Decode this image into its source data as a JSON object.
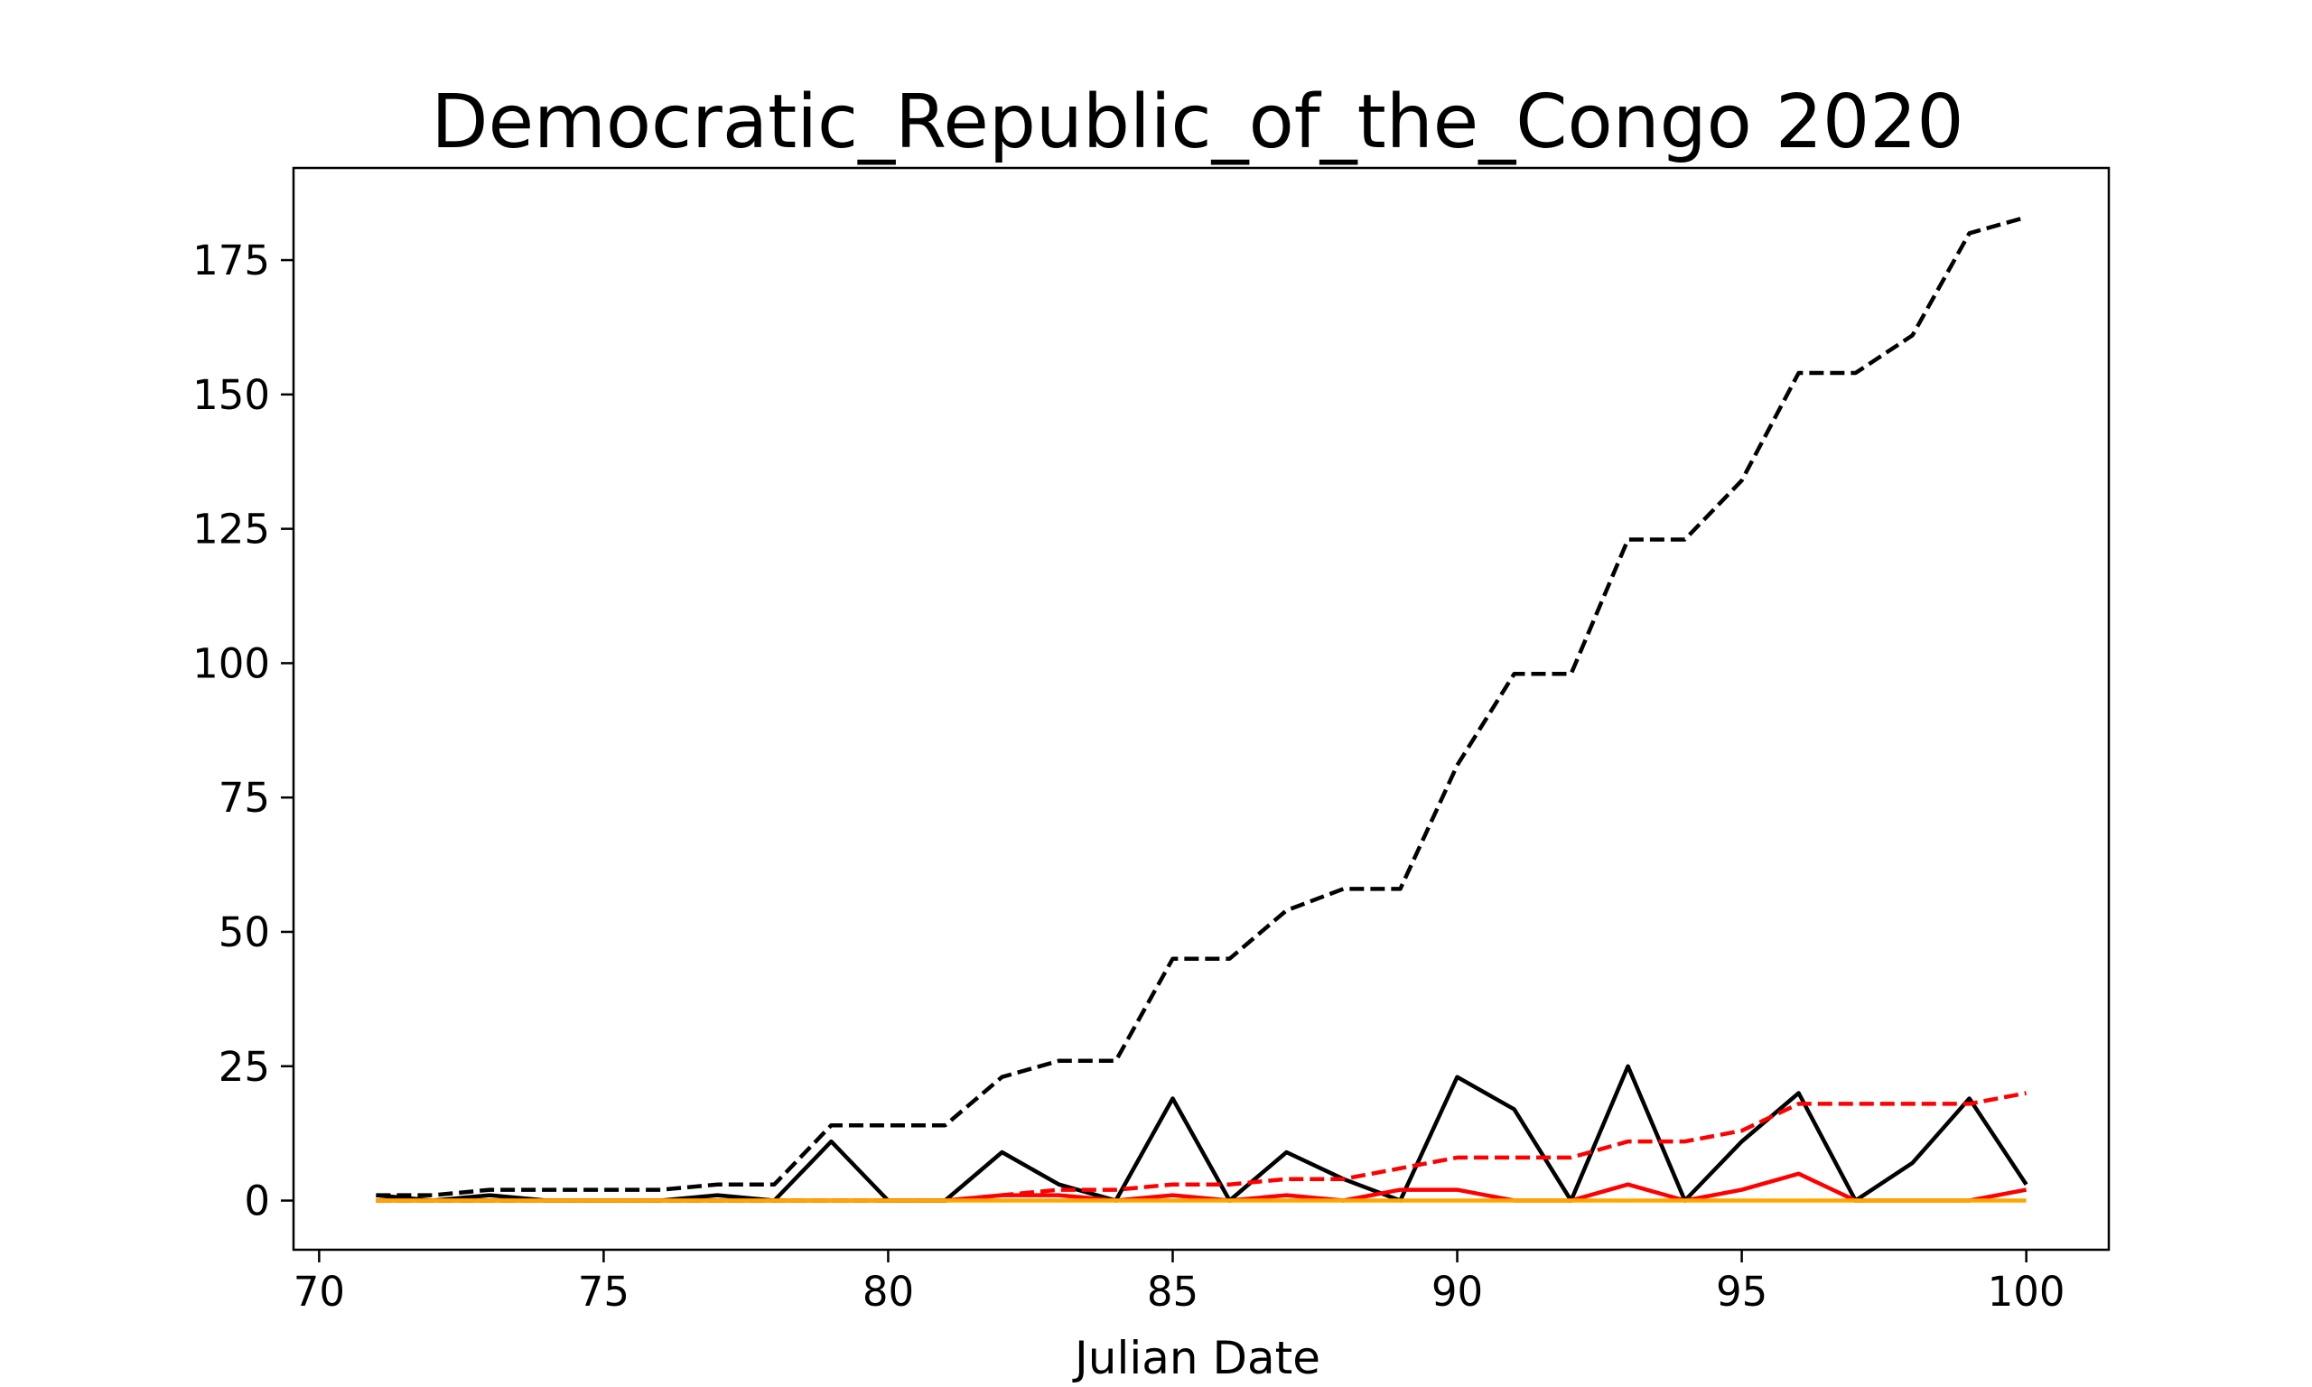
{
  "chart_data": {
    "type": "line",
    "title": "Democratic_Republic_of_the_Congo 2020",
    "xlabel": "Julian Date",
    "ylabel": "",
    "xlim": [
      69.55,
      101.45
    ],
    "ylim": [
      -9.15,
      192.15
    ],
    "xticks": [
      70,
      75,
      80,
      85,
      90,
      95,
      100
    ],
    "yticks": [
      0,
      25,
      50,
      75,
      100,
      125,
      150,
      175
    ],
    "grid": false,
    "legend": "none",
    "x": [
      71,
      72,
      73,
      74,
      75,
      76,
      77,
      78,
      79,
      80,
      81,
      82,
      83,
      84,
      85,
      86,
      87,
      88,
      89,
      90,
      91,
      92,
      93,
      94,
      95,
      96,
      97,
      98,
      99,
      100
    ],
    "series": [
      {
        "color": "#000000",
        "style": "dashed",
        "values": [
          1,
          1,
          2,
          2,
          2,
          2,
          3,
          3,
          14,
          14,
          14,
          23,
          26,
          26,
          45,
          45,
          54,
          58,
          58,
          81,
          98,
          98,
          123,
          123,
          134,
          154,
          154,
          161,
          180,
          183
        ]
      },
      {
        "color": "#000000",
        "style": "solid",
        "values": [
          1,
          0,
          1,
          0,
          0,
          0,
          1,
          0,
          11,
          0,
          0,
          9,
          3,
          0,
          19,
          0,
          9,
          4,
          0,
          23,
          17,
          0,
          25,
          0,
          11,
          20,
          0,
          7,
          19,
          3
        ]
      },
      {
        "color": "#ff0000",
        "style": "dashed",
        "values": [
          0,
          0,
          0,
          0,
          0,
          0,
          0,
          0,
          0,
          0,
          0,
          1,
          2,
          2,
          3,
          3,
          4,
          4,
          6,
          8,
          8,
          8,
          11,
          11,
          13,
          18,
          18,
          18,
          18,
          20
        ]
      },
      {
        "color": "#ff0000",
        "style": "solid",
        "values": [
          0,
          0,
          0,
          0,
          0,
          0,
          0,
          0,
          0,
          0,
          0,
          1,
          1,
          0,
          1,
          0,
          1,
          0,
          2,
          2,
          0,
          0,
          3,
          0,
          2,
          5,
          0,
          0,
          0,
          2
        ]
      },
      {
        "color": "#ffa500",
        "style": "solid",
        "values": [
          0,
          0,
          0,
          0,
          0,
          0,
          0,
          0,
          0,
          0,
          0,
          0,
          0,
          0,
          0,
          0,
          0,
          0,
          0,
          0,
          0,
          0,
          0,
          0,
          0,
          0,
          0,
          0,
          0,
          0
        ]
      }
    ]
  }
}
